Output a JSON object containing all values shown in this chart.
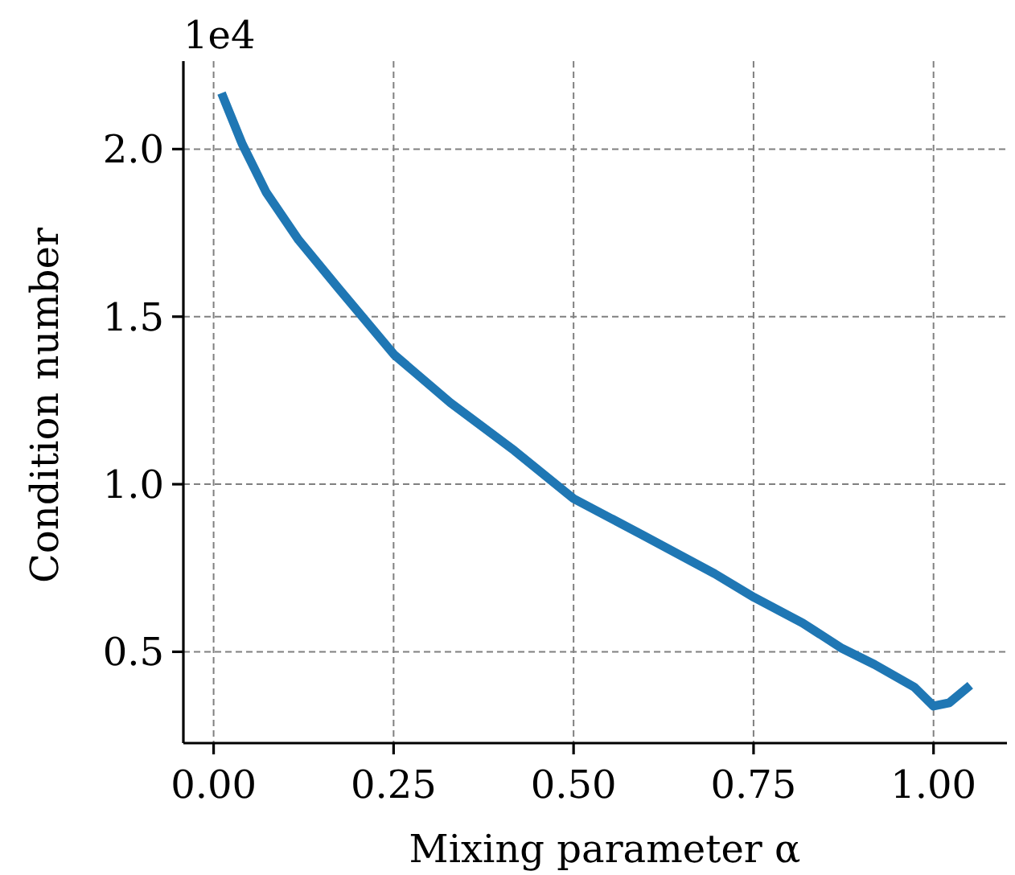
{
  "chart_data": {
    "type": "line",
    "xlabel": "Mixing parameter α",
    "ylabel": "Condition number",
    "annotations": [
      "1e4"
    ],
    "x": [
      0.011,
      0.04,
      0.073,
      0.118,
      0.173,
      0.251,
      0.329,
      0.418,
      0.5,
      0.596,
      0.696,
      0.751,
      0.818,
      0.873,
      0.918,
      0.973,
      1.0,
      1.022,
      1.051
    ],
    "series": [
      {
        "color": "#1f77b4",
        "values": [
          2.167,
          2.014,
          1.871,
          1.729,
          1.586,
          1.386,
          1.243,
          1.1,
          0.957,
          0.848,
          0.733,
          0.662,
          0.586,
          0.51,
          0.462,
          0.395,
          0.338,
          0.348,
          0.4
        ]
      }
    ],
    "xlim": [
      -0.042,
      1.102
    ],
    "ylim": [
      0.2275,
      2.2625
    ],
    "xticks": [
      {
        "value": 0,
        "label": "0.00"
      },
      {
        "value": 0.25,
        "label": "0.25"
      },
      {
        "value": 0.5,
        "label": "0.50"
      },
      {
        "value": 0.75,
        "label": "0.75"
      },
      {
        "value": 1,
        "label": "1.00"
      }
    ],
    "yticks": [
      {
        "value": 0.5,
        "label": "0.5"
      },
      {
        "value": 1,
        "label": "1.0"
      },
      {
        "value": 1.5,
        "label": "1.5"
      },
      {
        "value": 2,
        "label": "2.0"
      }
    ],
    "grid": true,
    "line_style": "solid",
    "marker": "none"
  }
}
